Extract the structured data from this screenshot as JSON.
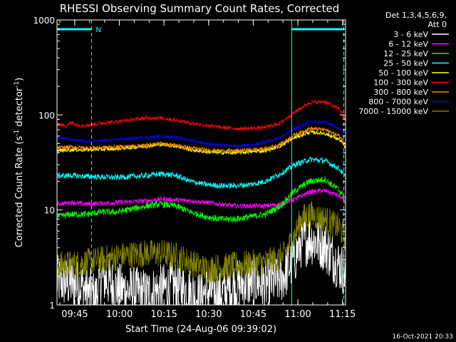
{
  "chart_data": {
    "type": "line",
    "title": "RHESSI Observing Summary Count Rates, Corrected",
    "xlabel": "Start Time (24-Aug-06 09:39:02)",
    "ylabel_main": "Corrected Count Rate (s",
    "ylabel_sup1": "-1",
    "ylabel_mid": " detector",
    "ylabel_sup2": "-1",
    "ylabel_end": ")",
    "yscale": "log",
    "ylim": [
      1,
      1000
    ],
    "xlim_minutes": [
      0,
      97
    ],
    "x_ticks": [
      {
        "label": "09:45",
        "minute": 5.97
      },
      {
        "label": "10:00",
        "minute": 20.97
      },
      {
        "label": "10:15",
        "minute": 35.97
      },
      {
        "label": "10:30",
        "minute": 50.97
      },
      {
        "label": "10:45",
        "minute": 65.97
      },
      {
        "label": "11:00",
        "minute": 80.97
      },
      {
        "label": "11:15",
        "minute": 95.97
      }
    ],
    "y_ticks": [
      {
        "label": "1",
        "value": 1
      },
      {
        "label": "10",
        "value": 10
      },
      {
        "label": "100",
        "value": 100
      },
      {
        "label": "1000",
        "value": 1000
      }
    ],
    "legend_header": [
      "Det 1,3,4,5,6,9,",
      "Att 0"
    ],
    "legend_placement": "right",
    "series": [
      {
        "name": "3 - 6 keV",
        "color": "#ffffff",
        "noise": 0.55,
        "x": [
          0,
          8,
          10,
          13,
          15,
          20,
          30,
          40,
          48,
          50,
          55,
          60,
          67,
          70,
          76,
          80,
          82,
          85,
          90,
          92,
          95,
          97
        ],
        "values": [
          1.8,
          1.6,
          1.4,
          1.2,
          2.0,
          1.5,
          1.3,
          1.6,
          1.2,
          1.4,
          1.3,
          1.6,
          1.8,
          1.6,
          2.0,
          3.2,
          4.5,
          5.0,
          4.2,
          3.4,
          2.6,
          2.2
        ]
      },
      {
        "name": "6 - 12 keV",
        "color": "#ff00ff",
        "noise": 0.05,
        "x": [
          0,
          5,
          10,
          20,
          30,
          35,
          45,
          55,
          60,
          70,
          75,
          80,
          85,
          90,
          95,
          97
        ],
        "values": [
          11.5,
          12,
          11.5,
          12,
          12.5,
          13,
          12.5,
          11.5,
          11,
          11,
          11.5,
          13,
          15.5,
          16,
          14,
          12
        ]
      },
      {
        "name": "12 - 25 keV",
        "color": "#00ff00",
        "noise": 0.07,
        "x": [
          0,
          5,
          10,
          15,
          20,
          30,
          35,
          40,
          45,
          50,
          55,
          60,
          65,
          70,
          75,
          80,
          85,
          90,
          95,
          97
        ],
        "values": [
          8.5,
          9,
          9,
          9.5,
          9.5,
          11,
          11.5,
          11,
          9.5,
          8.5,
          8,
          8,
          8.5,
          9,
          11,
          16,
          20,
          21,
          16,
          13
        ]
      },
      {
        "name": "25 - 50 keV",
        "color": "#00ffff",
        "noise": 0.06,
        "x": [
          0,
          5,
          10,
          20,
          30,
          35,
          40,
          45,
          50,
          55,
          60,
          65,
          70,
          75,
          80,
          85,
          90,
          95,
          97
        ],
        "values": [
          23,
          23,
          22.5,
          22,
          23,
          24,
          23,
          20,
          18.5,
          18,
          18,
          18.5,
          20,
          24,
          30,
          34,
          33,
          27,
          22
        ]
      },
      {
        "name": "50 - 100 keV",
        "color": "#ffff00",
        "noise": 0.04,
        "x": [
          0,
          5,
          10,
          20,
          30,
          35,
          40,
          45,
          50,
          55,
          60,
          65,
          70,
          75,
          80,
          85,
          90,
          95,
          97
        ],
        "values": [
          42,
          43,
          43,
          44,
          47,
          49,
          47,
          43,
          41,
          40,
          40,
          41,
          42,
          47,
          58,
          66,
          64,
          55,
          45
        ]
      },
      {
        "name": "100 - 300 keV",
        "color": "#ff0000",
        "noise": 0.04,
        "x": [
          0,
          3,
          5,
          7,
          10,
          15,
          20,
          25,
          30,
          35,
          40,
          45,
          50,
          55,
          60,
          65,
          70,
          75,
          80,
          85,
          90,
          95,
          97
        ],
        "values": [
          80,
          77,
          83,
          78,
          78,
          82,
          85,
          89,
          93,
          93,
          88,
          82,
          78,
          74,
          72,
          72,
          74,
          82,
          108,
          135,
          138,
          115,
          90
        ]
      },
      {
        "name": "300 - 800 keV",
        "color": "#ff8c00",
        "noise": 0.04,
        "x": [
          0,
          5,
          10,
          20,
          30,
          35,
          40,
          45,
          50,
          55,
          60,
          65,
          70,
          75,
          80,
          85,
          90,
          95,
          97
        ],
        "values": [
          45,
          46,
          45,
          46,
          48,
          50,
          48,
          45,
          43,
          42,
          42,
          43,
          44,
          49,
          62,
          72,
          70,
          60,
          50
        ]
      },
      {
        "name": "800 - 7000 keV",
        "color": "#0000ff",
        "noise": 0.03,
        "x": [
          0,
          5,
          10,
          20,
          30,
          35,
          40,
          45,
          50,
          55,
          60,
          65,
          70,
          75,
          80,
          85,
          90,
          95,
          97
        ],
        "values": [
          58,
          55,
          52,
          55,
          58,
          60,
          58,
          54,
          50,
          48,
          47,
          48,
          52,
          58,
          72,
          85,
          84,
          72,
          58
        ]
      },
      {
        "name": "7000 - 15000 keV",
        "color": "#808000",
        "noise": 0.3,
        "x": [
          0,
          10,
          15,
          20,
          25,
          30,
          35,
          40,
          45,
          50,
          60,
          70,
          76,
          80,
          82,
          85,
          90,
          95,
          97
        ],
        "values": [
          2.6,
          2.8,
          3.0,
          3.2,
          3.4,
          3.5,
          3.5,
          3.3,
          2.8,
          2.4,
          2.6,
          2.8,
          3.2,
          5.5,
          8.0,
          9.0,
          8.0,
          6.5,
          5.0
        ]
      }
    ],
    "markers": {
      "solid_lines_minutes": [
        78.9,
        0.0
      ],
      "dashed_lines_minutes": [
        11.6,
        96.4
      ],
      "bar_left_minutes": [
        0.0,
        11.6
      ],
      "bar_right_minutes": [
        78.9,
        96.4
      ],
      "bar_label": "N",
      "bar_color": "#00ffff"
    }
  },
  "footer": {
    "timestamp": "16-Oct-2021 20:33"
  }
}
